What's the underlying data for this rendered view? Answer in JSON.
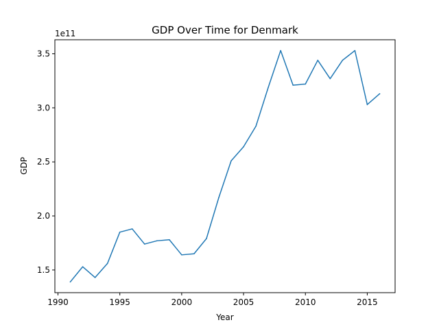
{
  "chart_data": {
    "type": "line",
    "title": "GDP Over Time for Denmark",
    "xlabel": "Year",
    "ylabel": "GDP",
    "y_multiplier_label": "1e11",
    "xlim": [
      1989.75,
      2017.25
    ],
    "ylim": [
      1.29,
      3.63
    ],
    "x_ticks": [
      1990,
      1995,
      2000,
      2005,
      2010,
      2015
    ],
    "x_tick_labels": [
      "1990",
      "1995",
      "2000",
      "2005",
      "2010",
      "2015"
    ],
    "y_ticks": [
      1.5,
      2.0,
      2.5,
      3.0,
      3.5
    ],
    "y_tick_labels": [
      "1.5",
      "2.0",
      "2.5",
      "3.0",
      "3.5"
    ],
    "grid": false,
    "legend": "none",
    "series": [
      {
        "color": "#1f77b4",
        "x": [
          1991,
          1992,
          1993,
          1994,
          1995,
          1996,
          1997,
          1998,
          1999,
          2000,
          2001,
          2002,
          2003,
          2004,
          2005,
          2006,
          2007,
          2008,
          2009,
          2010,
          2011,
          2012,
          2013,
          2014,
          2015,
          2016
        ],
        "values": [
          1.39,
          1.53,
          1.43,
          1.56,
          1.85,
          1.88,
          1.74,
          1.77,
          1.78,
          1.64,
          1.65,
          1.79,
          2.17,
          2.51,
          2.64,
          2.83,
          3.19,
          3.53,
          3.21,
          3.22,
          3.44,
          3.27,
          3.44,
          3.53,
          3.03,
          3.13
        ]
      }
    ]
  }
}
